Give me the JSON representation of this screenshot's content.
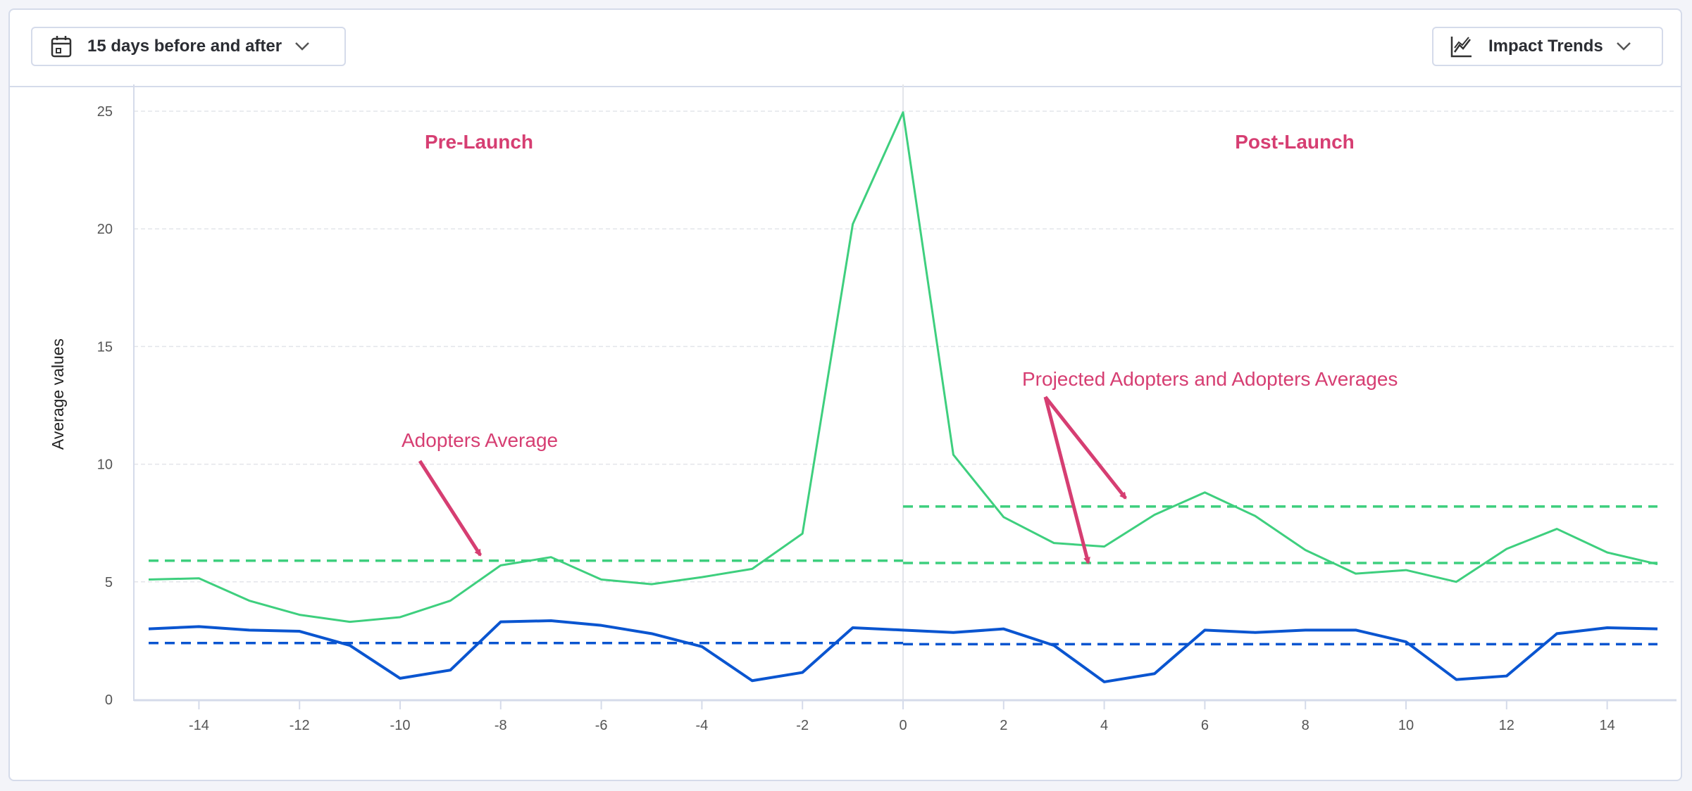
{
  "toolbar": {
    "range_label": "15 days before and after",
    "range_icon": "calendar-icon",
    "view_label": "Impact Trends",
    "view_icon": "line-chart-icon"
  },
  "annotations": {
    "pre_launch": "Pre-Launch",
    "post_launch": "Post-Launch",
    "adopters_average": "Adopters Average",
    "projected": "Projected Adopters and Adopters Averages"
  },
  "colors": {
    "green": "#3ecf7e",
    "blue": "#0a55d0",
    "annotation": "#d63e72"
  },
  "chart_data": {
    "type": "line",
    "ylabel": "Average values",
    "xlabel": "",
    "xlim": [
      -15,
      15
    ],
    "ylim": [
      0,
      25
    ],
    "xticks": [
      -14,
      -12,
      -10,
      -8,
      -6,
      -4,
      -2,
      0,
      2,
      4,
      6,
      8,
      10,
      12,
      14
    ],
    "yticks": [
      0,
      5,
      10,
      15,
      20,
      25
    ],
    "grid": true,
    "launch_x": 0,
    "x": [
      -15,
      -14,
      -13,
      -12,
      -11,
      -10,
      -9,
      -8,
      -7,
      -6,
      -5,
      -4,
      -3,
      -2,
      -1,
      0,
      1,
      2,
      3,
      4,
      5,
      6,
      7,
      8,
      9,
      10,
      11,
      12,
      13,
      14,
      15
    ],
    "series": [
      {
        "color": "#3ecf7e",
        "values": [
          5.1,
          5.15,
          4.2,
          3.6,
          3.3,
          3.5,
          4.2,
          5.7,
          6.05,
          5.1,
          4.9,
          5.2,
          5.55,
          7.05,
          20.2,
          24.95,
          10.4,
          7.75,
          6.65,
          6.5,
          7.85,
          8.8,
          7.8,
          6.35,
          5.35,
          5.5,
          5.0,
          6.4,
          7.25,
          6.25,
          5.75
        ]
      },
      {
        "color": "#0a55d0",
        "values": [
          3.0,
          3.1,
          2.95,
          2.9,
          2.3,
          0.9,
          1.25,
          3.3,
          3.35,
          3.15,
          2.8,
          2.25,
          0.8,
          1.15,
          3.05,
          2.95,
          2.85,
          3.0,
          2.3,
          0.75,
          1.1,
          2.95,
          2.85,
          2.95,
          2.95,
          2.45,
          0.85,
          1.0,
          2.8,
          3.05,
          3.0
        ]
      }
    ],
    "reference_lines": [
      {
        "color": "#3ecf7e",
        "y": 5.9,
        "x_range": [
          -15,
          0
        ]
      },
      {
        "color": "#3ecf7e",
        "y": 8.2,
        "x_range": [
          0,
          15
        ]
      },
      {
        "color": "#3ecf7e",
        "y": 5.8,
        "x_range": [
          0,
          15
        ]
      },
      {
        "color": "#0a55d0",
        "y": 2.4,
        "x_range": [
          -15,
          0
        ]
      },
      {
        "color": "#0a55d0",
        "y": 2.35,
        "x_range": [
          0,
          15
        ]
      }
    ]
  }
}
